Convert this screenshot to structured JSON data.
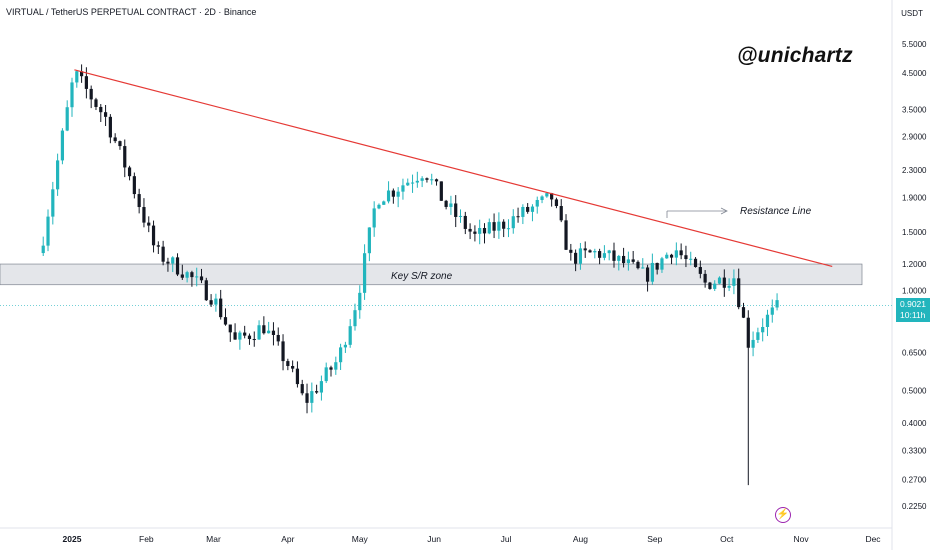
{
  "header": {
    "title": "VIRTUAL / TetherUS PERPETUAL CONTRACT · 2D · Binance"
  },
  "watermark": "@unichartz",
  "annotations": {
    "resistance": "Resistance Line",
    "zone": "Key S/R zone"
  },
  "price_tag": {
    "price": "0.9021",
    "countdown": "10:11h"
  },
  "icons": {
    "flash": "lightning-bolt-icon"
  },
  "colors": {
    "up": "#22b5bd",
    "down": "#131722",
    "trendline": "#e53935",
    "zone_fill": "#e4e6ea",
    "zone_border": "#7f8591",
    "price_line": "#22b5bd",
    "event_icon": "#9c27b0"
  },
  "chart_data": {
    "type": "candlestick",
    "symbol": "VIRTUAL / TetherUS PERPETUAL CONTRACT",
    "interval": "2D",
    "exchange": "Binance",
    "y_scale": "log",
    "y_unit": "USDT",
    "y_ticks": [
      "5.5000",
      "4.5000",
      "3.5000",
      "2.9000",
      "2.3000",
      "1.9000",
      "1.5000",
      "1.2000",
      "1.0000",
      "0.6500",
      "0.5000",
      "0.4000",
      "0.3300",
      "0.2700",
      "0.2250"
    ],
    "x_ticks": [
      "2025",
      "Feb",
      "Mar",
      "Apr",
      "May",
      "Jun",
      "Jul",
      "Aug",
      "Sep",
      "Oct",
      "Nov",
      "Dec"
    ],
    "last_price": 0.9021,
    "zone": {
      "label": "Key S/R zone",
      "low": 1.04,
      "high": 1.2
    },
    "trendline": {
      "label": "Resistance Line",
      "from": {
        "date": "2025-01-02",
        "price": 4.6
      },
      "to": {
        "date": "2025-11-14",
        "price": 1.18
      }
    },
    "anchors": [
      {
        "date": "2024-12-20",
        "price": 1.45
      },
      {
        "date": "2025-01-02",
        "price": 4.5
      },
      {
        "date": "2025-01-15",
        "price": 3.3
      },
      {
        "date": "2025-01-25",
        "price": 2.2
      },
      {
        "date": "2025-02-05",
        "price": 1.3
      },
      {
        "date": "2025-02-16",
        "price": 1.15
      },
      {
        "date": "2025-03-01",
        "price": 0.95
      },
      {
        "date": "2025-03-10",
        "price": 0.7
      },
      {
        "date": "2025-03-22",
        "price": 0.78
      },
      {
        "date": "2025-04-01",
        "price": 0.6
      },
      {
        "date": "2025-04-08",
        "price": 0.46
      },
      {
        "date": "2025-04-22",
        "price": 0.62
      },
      {
        "date": "2025-04-30",
        "price": 0.95
      },
      {
        "date": "2025-05-08",
        "price": 1.9
      },
      {
        "date": "2025-05-15",
        "price": 2.0
      },
      {
        "date": "2025-05-28",
        "price": 2.3
      },
      {
        "date": "2025-06-06",
        "price": 1.8
      },
      {
        "date": "2025-06-18",
        "price": 1.45
      },
      {
        "date": "2025-07-01",
        "price": 1.6
      },
      {
        "date": "2025-07-20",
        "price": 1.9
      },
      {
        "date": "2025-07-28",
        "price": 1.25
      },
      {
        "date": "2025-08-08",
        "price": 1.3
      },
      {
        "date": "2025-08-20",
        "price": 1.2
      },
      {
        "date": "2025-08-28",
        "price": 1.1
      },
      {
        "date": "2025-09-09",
        "price": 1.35
      },
      {
        "date": "2025-09-22",
        "price": 1.05
      },
      {
        "date": "2025-10-04",
        "price": 1.1
      },
      {
        "date": "2025-10-10",
        "price": 0.7
      },
      {
        "date": "2025-10-16",
        "price": 0.8
      },
      {
        "date": "2025-10-23",
        "price": 0.9
      }
    ],
    "notable_low": {
      "date": "2025-10-10",
      "price": 0.26
    },
    "notable_high": {
      "date": "2025-01-02",
      "price": 4.95
    }
  }
}
